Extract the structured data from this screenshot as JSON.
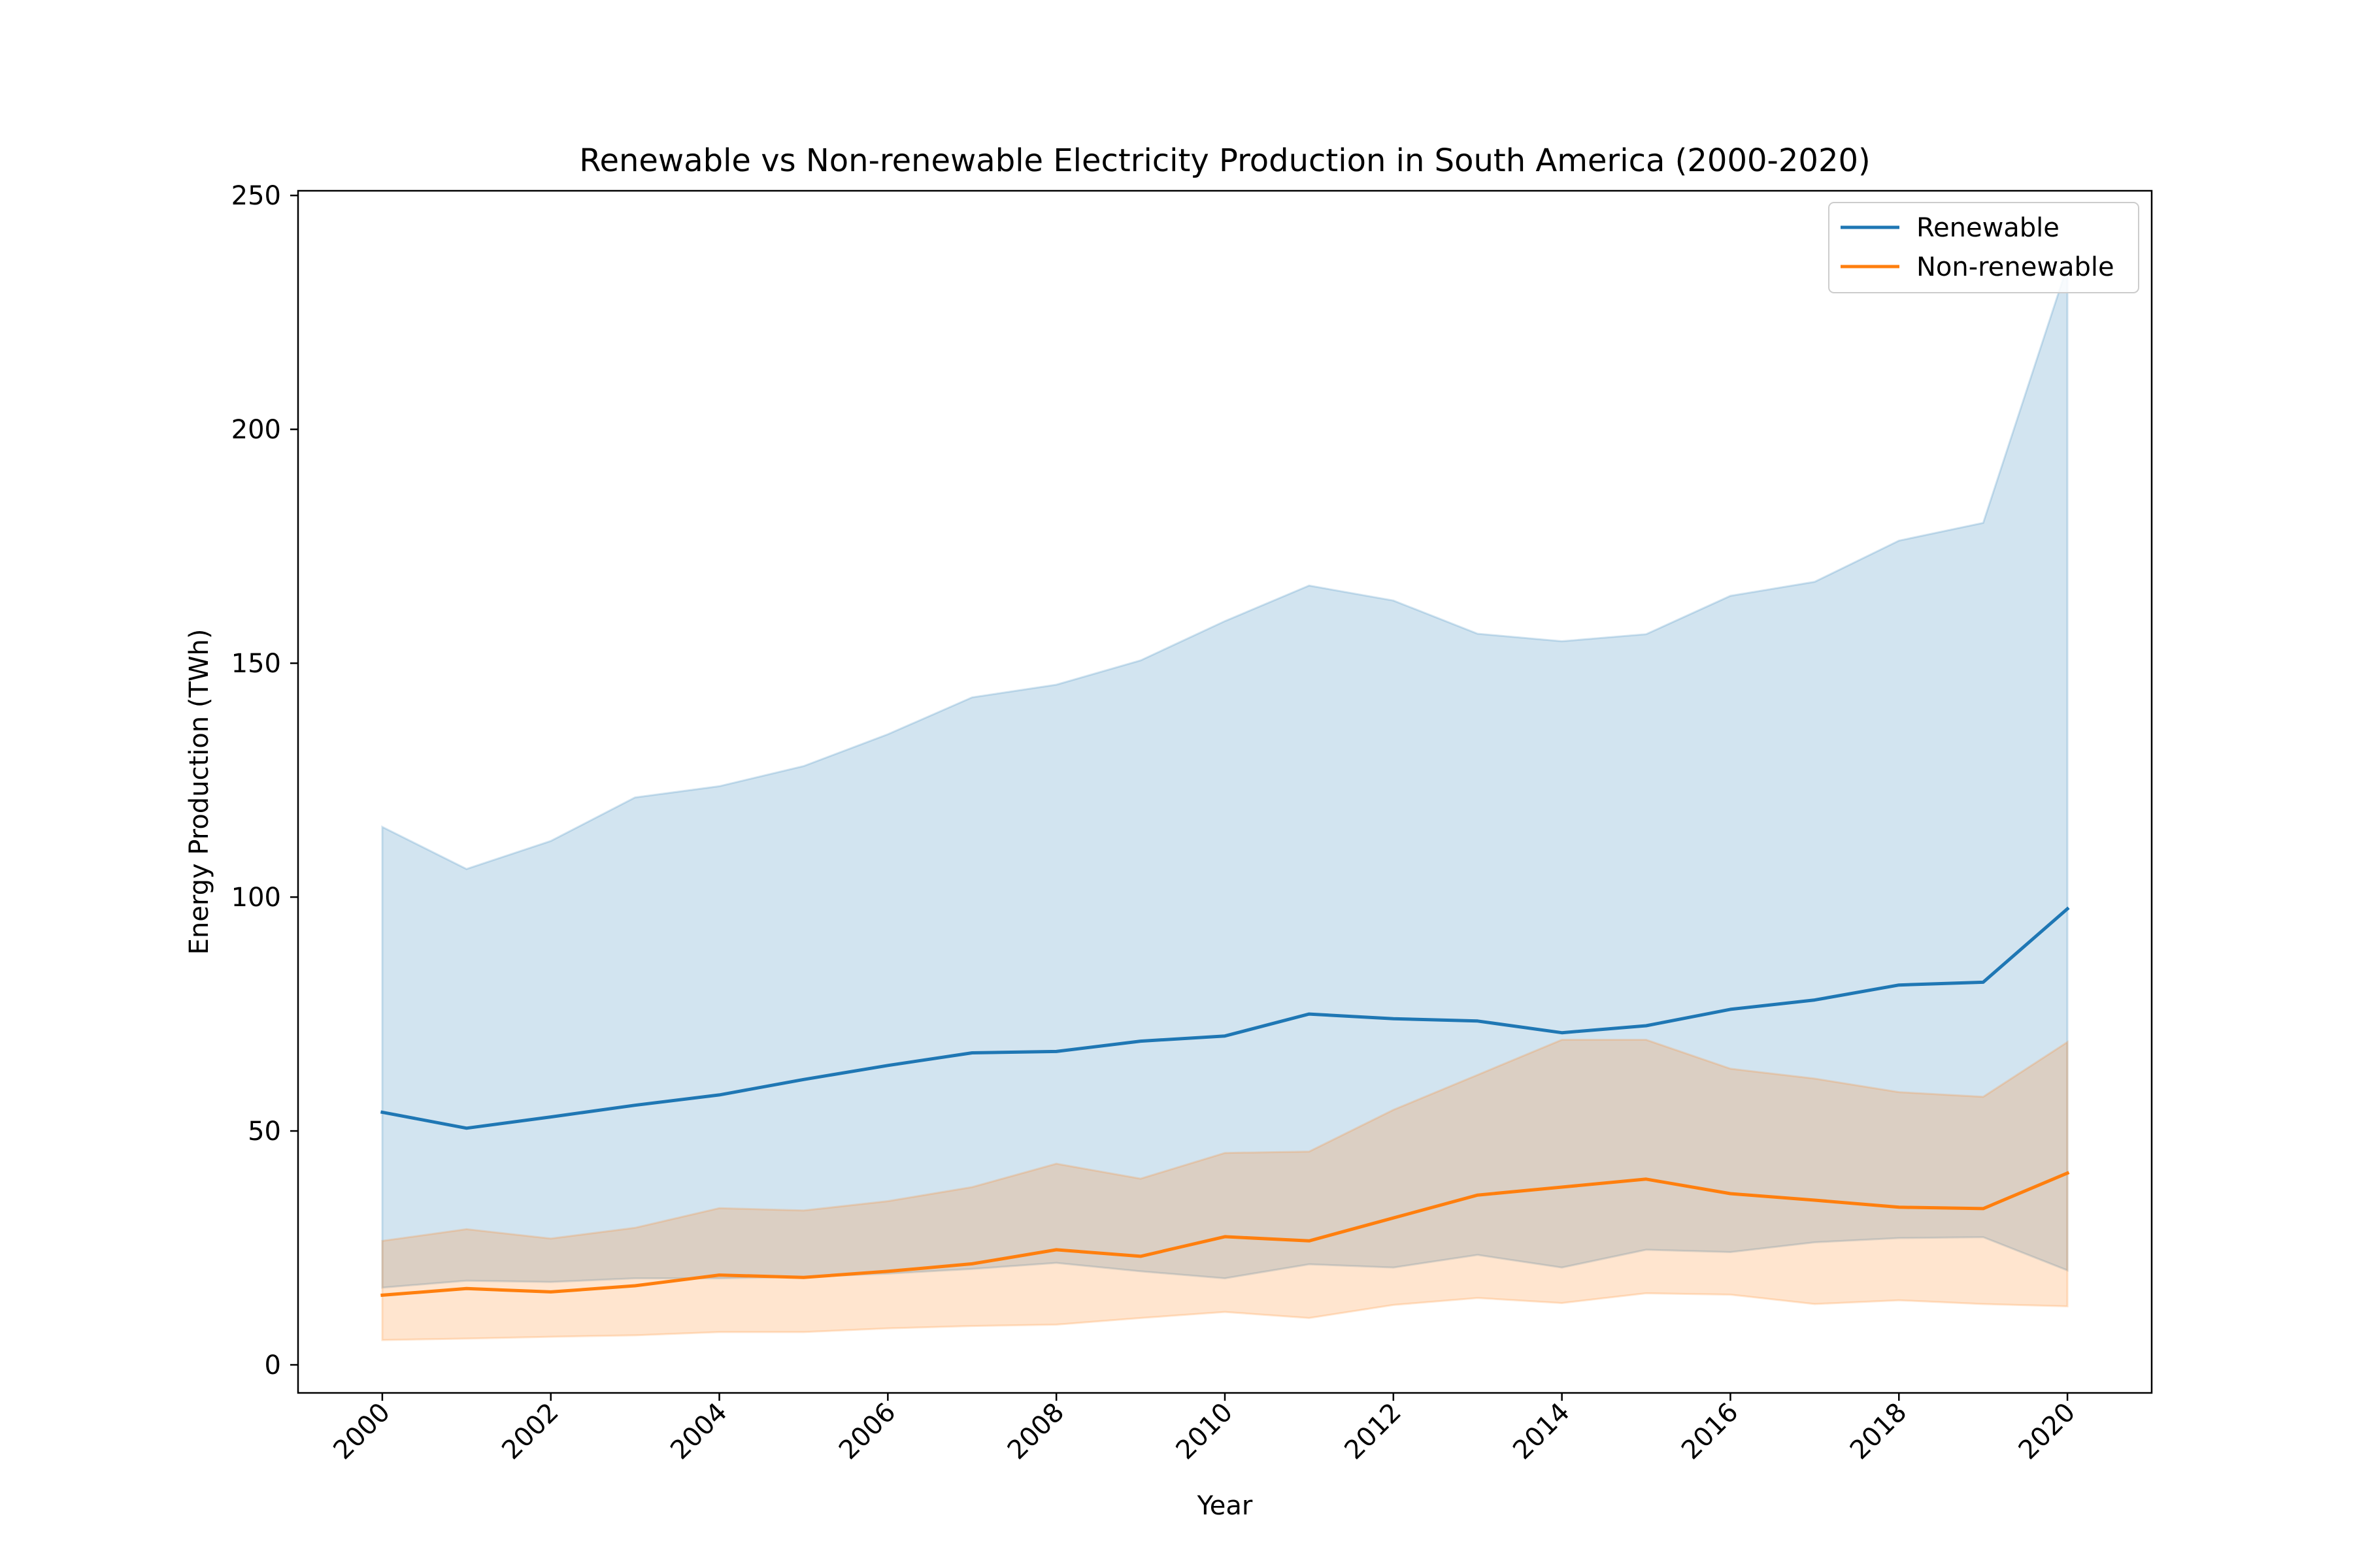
{
  "chart_data": {
    "type": "line",
    "title": "Renewable vs Non-renewable Electricity Production in South America (2000-2020)",
    "xlabel": "Year",
    "ylabel": "Energy Production (TWh)",
    "xlim": [
      1999,
      2021
    ],
    "ylim": [
      -6,
      251
    ],
    "xticks": [
      "2000",
      "2002",
      "2004",
      "2006",
      "2008",
      "2010",
      "2012",
      "2014",
      "2016",
      "2018",
      "2020"
    ],
    "yticks": [
      "0",
      "50",
      "100",
      "150",
      "200",
      "250"
    ],
    "grid": false,
    "legend": "top-right",
    "x": [
      2000,
      2001,
      2002,
      2003,
      2004,
      2005,
      2006,
      2007,
      2008,
      2009,
      2010,
      2011,
      2012,
      2013,
      2014,
      2015,
      2016,
      2017,
      2018,
      2019,
      2020
    ],
    "series": [
      {
        "name": "Renewable",
        "color": "#1f77b4",
        "values": [
          54,
          50.6,
          53,
          55.5,
          57.7,
          61,
          64,
          66.7,
          67,
          69.2,
          70.3,
          75,
          74,
          73.5,
          71,
          72.5,
          76,
          78,
          81.2,
          81.8,
          97.5
        ],
        "upper": [
          115,
          106,
          112,
          121.3,
          123.7,
          128,
          134.8,
          142.7,
          145.4,
          150.6,
          159,
          166.6,
          163.4,
          156.3,
          154.7,
          156.2,
          164.4,
          167.4,
          176.2,
          180,
          235
        ],
        "lower": [
          16.5,
          18,
          17.7,
          18.5,
          18.5,
          18.8,
          19.5,
          20.5,
          21.8,
          20,
          18.5,
          21.5,
          20.8,
          23.5,
          20.8,
          24.6,
          24.1,
          26.2,
          27.1,
          27.3,
          20.2
        ]
      },
      {
        "name": "Non-renewable",
        "color": "#ff7f0e",
        "values": [
          14.9,
          16.3,
          15.6,
          16.9,
          19.2,
          18.7,
          20,
          21.6,
          24.6,
          23.2,
          27.4,
          26.5,
          31.4,
          36.3,
          38,
          39.7,
          36.6,
          35.2,
          33.7,
          33.4,
          41
        ],
        "upper": [
          26.5,
          29,
          27,
          29.3,
          33.5,
          33,
          35,
          38,
          43,
          39.8,
          45.3,
          45.6,
          54.5,
          62,
          69.5,
          69.5,
          63.3,
          61.2,
          58.3,
          57.3,
          69
        ],
        "lower": [
          5.3,
          5.6,
          6,
          6.3,
          7,
          7,
          7.8,
          8.3,
          8.6,
          10,
          11.3,
          10,
          12.8,
          14.3,
          13.2,
          15.3,
          15,
          13,
          13.8,
          13,
          12.5
        ]
      }
    ]
  }
}
